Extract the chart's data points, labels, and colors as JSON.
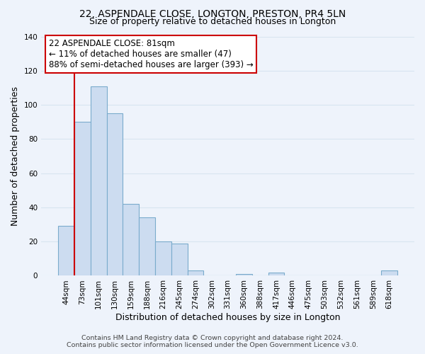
{
  "title": "22, ASPENDALE CLOSE, LONGTON, PRESTON, PR4 5LN",
  "subtitle": "Size of property relative to detached houses in Longton",
  "xlabel": "Distribution of detached houses by size in Longton",
  "ylabel": "Number of detached properties",
  "bar_labels": [
    "44sqm",
    "73sqm",
    "101sqm",
    "130sqm",
    "159sqm",
    "188sqm",
    "216sqm",
    "245sqm",
    "274sqm",
    "302sqm",
    "331sqm",
    "360sqm",
    "388sqm",
    "417sqm",
    "446sqm",
    "475sqm",
    "503sqm",
    "532sqm",
    "561sqm",
    "589sqm",
    "618sqm"
  ],
  "bar_values": [
    29,
    90,
    111,
    95,
    42,
    34,
    20,
    19,
    3,
    0,
    0,
    1,
    0,
    2,
    0,
    0,
    0,
    0,
    0,
    0,
    3
  ],
  "bar_color": "#ccdcf0",
  "bar_edge_color": "#7aabcc",
  "vline_color": "#cc0000",
  "vline_x": 0.5,
  "ylim": [
    0,
    140
  ],
  "yticks": [
    0,
    20,
    40,
    60,
    80,
    100,
    120,
    140
  ],
  "annotation_title": "22 ASPENDALE CLOSE: 81sqm",
  "annotation_line1": "← 11% of detached houses are smaller (47)",
  "annotation_line2": "88% of semi-detached houses are larger (393) →",
  "annotation_box_color": "#ffffff",
  "annotation_box_edge": "#cc0000",
  "footer_line1": "Contains HM Land Registry data © Crown copyright and database right 2024.",
  "footer_line2": "Contains public sector information licensed under the Open Government Licence v3.0.",
  "background_color": "#eef3fb",
  "grid_color": "#d8e4f0",
  "title_fontsize": 10,
  "subtitle_fontsize": 9,
  "axis_label_fontsize": 9,
  "tick_fontsize": 7.5,
  "annotation_fontsize": 8.5,
  "footer_fontsize": 6.8
}
